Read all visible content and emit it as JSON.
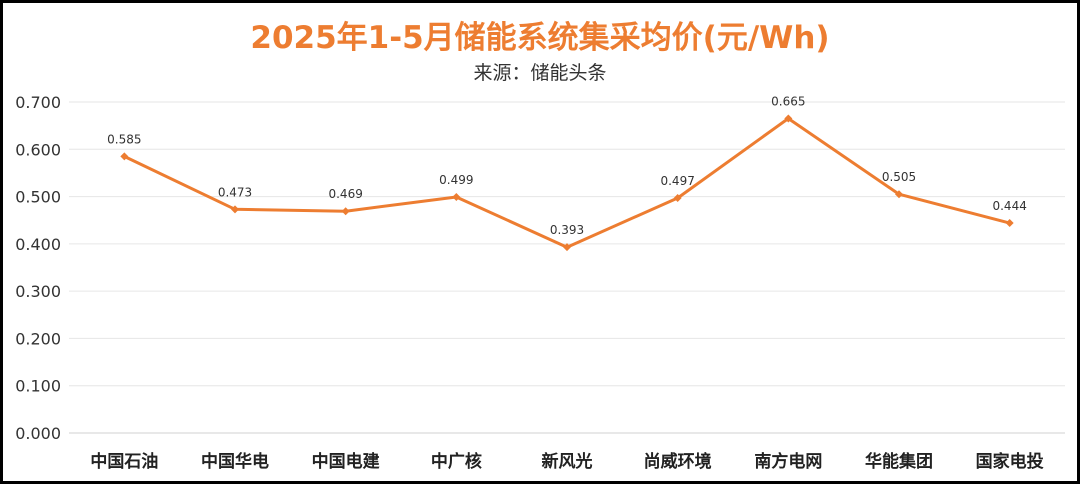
{
  "chart_data": {
    "type": "line",
    "title": "2025年1-5月储能系统集采均价(元/Wh)",
    "subtitle": "来源：储能头条",
    "categories": [
      "中国石油",
      "中国华电",
      "中国电建",
      "中广核",
      "新风光",
      "尚威环境",
      "南方电网",
      "华能集团",
      "国家电投"
    ],
    "series": [
      {
        "values": [
          0.585,
          0.473,
          0.469,
          0.499,
          0.393,
          0.497,
          0.665,
          0.505,
          0.444
        ]
      }
    ],
    "yticks": [
      "0.000",
      "0.100",
      "0.200",
      "0.300",
      "0.400",
      "0.500",
      "0.600",
      "0.700"
    ],
    "ylim": [
      0,
      0.7
    ],
    "grid": true,
    "data_labels": true,
    "line_color": "#ED7D31",
    "title_color": "#ED7D31"
  }
}
